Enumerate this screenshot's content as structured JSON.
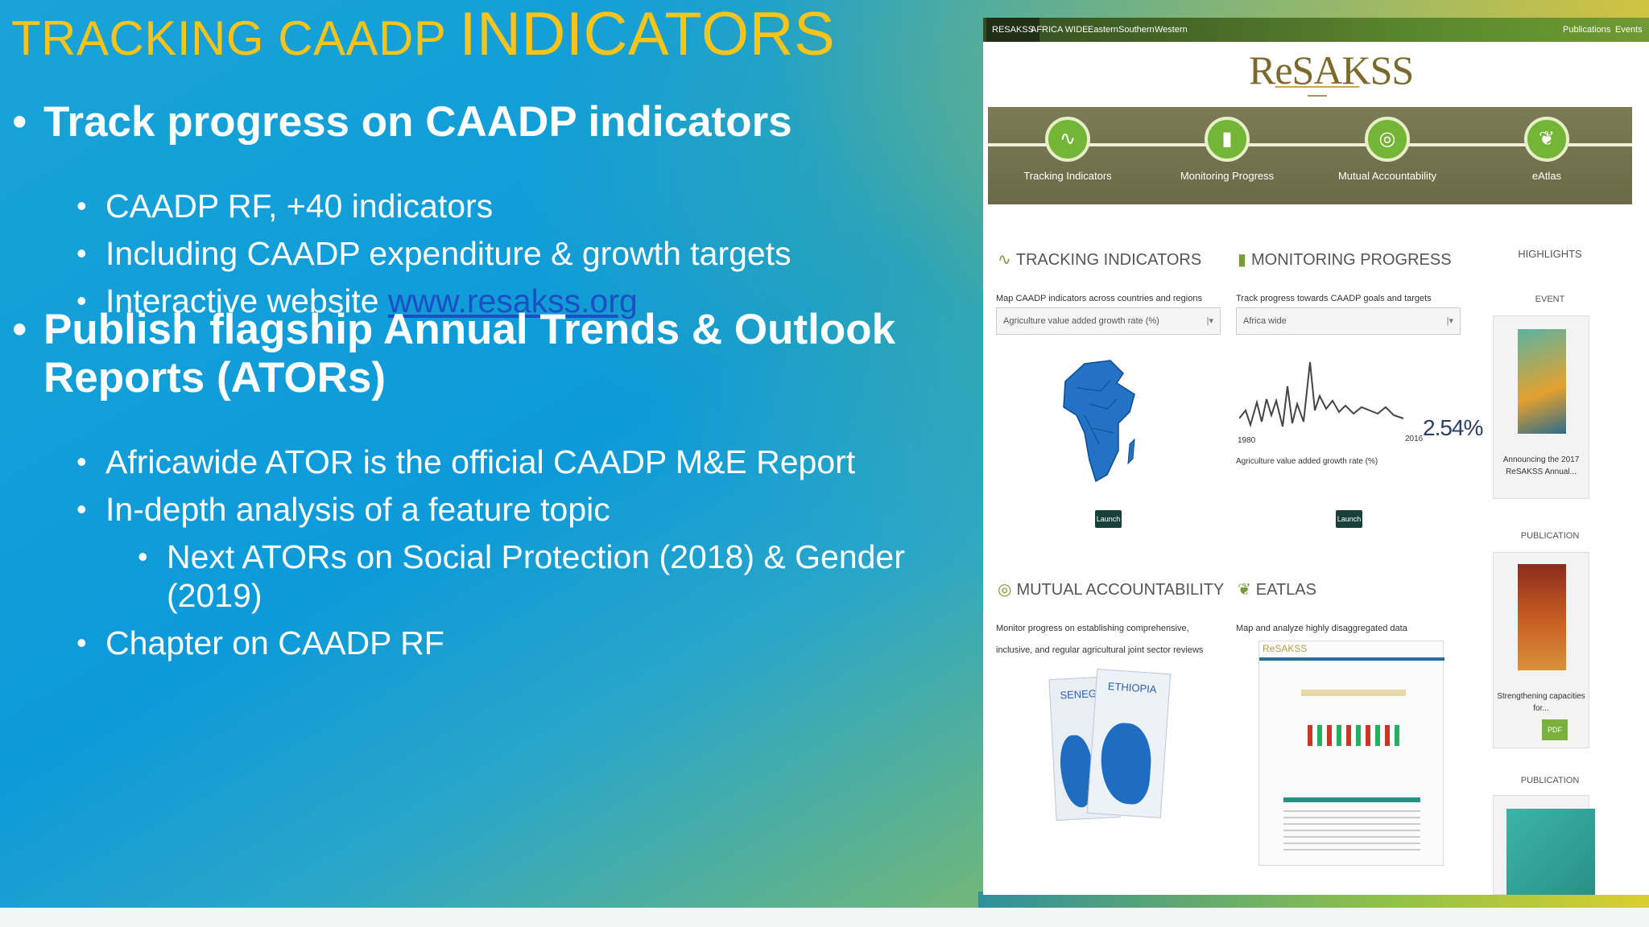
{
  "slide": {
    "title_part1": "TRACKING CAADP ",
    "title_part2": "INDICATORS",
    "bullets": {
      "b1": "Track progress on CAADP indicators",
      "b1_1": "CAADP RF, +40 indicators",
      "b1_2": "Including CAADP expenditure & growth targets",
      "b1_3_prefix": "Interactive website ",
      "b1_3_link": "www.resakss.org",
      "b2_line1": "Publish flagship Annual Trends & Outlook",
      "b2_line2": "Reports (ATORs)",
      "b2_1": "Africawide ATOR is the official CAADP M&E Report",
      "b2_2": "In-depth analysis of a feature topic",
      "b2_2_1_line1": "Next ATORs on Social Protection (2018) & Gender",
      "b2_2_1_line2": "(2019)",
      "b2_3": "Chapter on CAADP RF"
    },
    "bullet_glyph": "•",
    "title_color": "#f6c41a",
    "link_color": "#1d4fc4"
  },
  "website": {
    "nav": {
      "tabs": [
        "RESAKSS",
        "AFRICA WIDE",
        "Eastern",
        "Southern",
        "Western"
      ],
      "right": [
        "Publications",
        "Events"
      ]
    },
    "logo": "ReSAKSS",
    "hero": [
      {
        "icon": "∿",
        "label": "Tracking Indicators"
      },
      {
        "icon": "▮",
        "label": "Monitoring Progress"
      },
      {
        "icon": "◎",
        "label": "Mutual Accountability"
      },
      {
        "icon": "❦",
        "label": "eAtlas"
      }
    ],
    "tracking": {
      "icon": "∿",
      "heading": "TRACKING INDICATORS",
      "desc": "Map CAADP indicators across countries and regions",
      "select": "Agriculture value added growth rate (%)",
      "launch": "Launch"
    },
    "monitoring": {
      "icon": "▮",
      "heading": "MONITORING PROGRESS",
      "desc": "Track progress towards CAADP goals and targets",
      "select": "Africa wide",
      "x_start": "1980",
      "x_end": "2016",
      "value": "2.54%",
      "caption": "Agriculture value added growth rate (%)",
      "launch": "Launch"
    },
    "mutual": {
      "icon": "◎",
      "heading": "MUTUAL ACCOUNTABILITY",
      "desc": "Monitor progress on establishing comprehensive, inclusive, and regular agricultural joint sector reviews",
      "report_left": "SENEG",
      "report_right": "ETHIOPIA"
    },
    "eatlas": {
      "icon": "❦",
      "heading": "EATLAS",
      "desc": "Map and analyze highly disaggregated data",
      "preview_brand": "ReSAKSS"
    },
    "highlights": {
      "heading": "HIGHLIGHTS",
      "event_label": "EVENT",
      "event_caption": "Announcing the 2017 ReSAKSS Annual...",
      "pub_label": "PUBLICATION",
      "pub_caption": "Strengthening capacities for...",
      "pdf": "PDF",
      "pub2_label": "PUBLICATION"
    }
  }
}
